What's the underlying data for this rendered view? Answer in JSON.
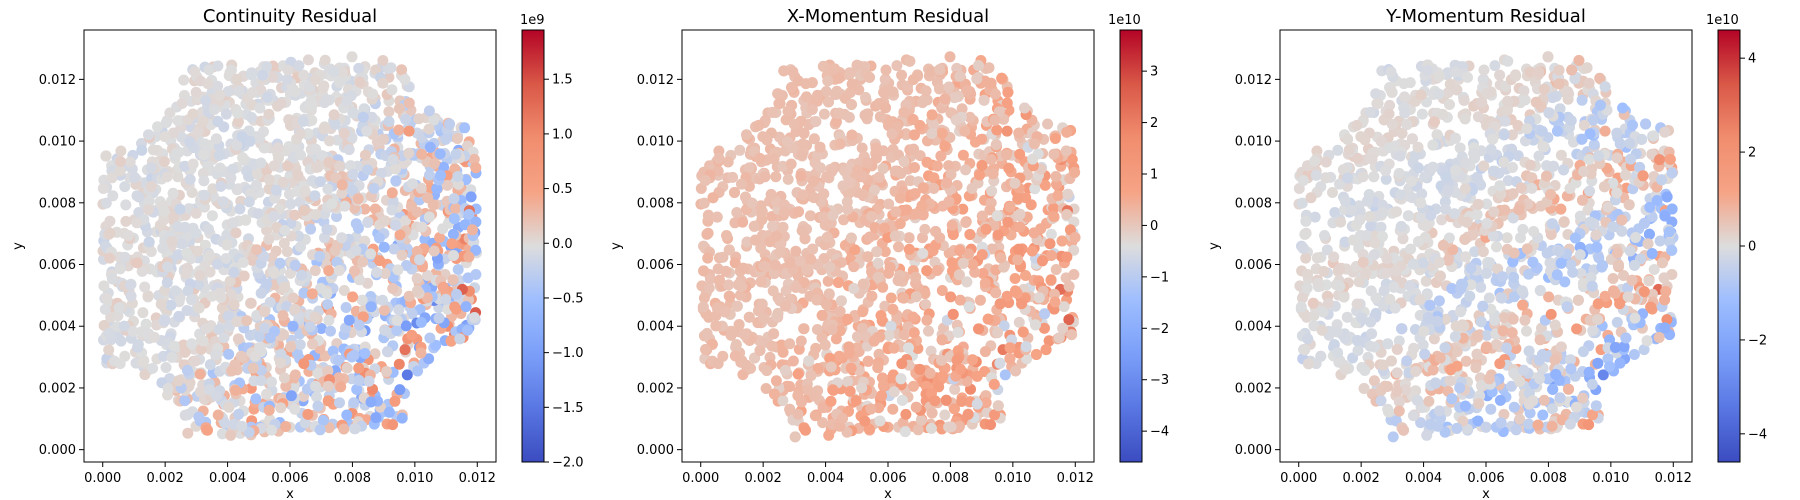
{
  "figure": {
    "background": "#ffffff"
  },
  "chart_data": [
    {
      "type": "scatter",
      "title": "Continuity Residual",
      "xlabel": "x",
      "ylabel": "y",
      "xlim": [
        -0.0006,
        0.0126
      ],
      "ylim": [
        -0.0004,
        0.0136
      ],
      "xticks": [
        0.0,
        0.002,
        0.004,
        0.006,
        0.008,
        0.01,
        0.012
      ],
      "xtick_labels": [
        "0.000",
        "0.002",
        "0.004",
        "0.006",
        "0.008",
        "0.010",
        "0.012"
      ],
      "yticks": [
        0.0,
        0.002,
        0.004,
        0.006,
        0.008,
        0.01,
        0.012
      ],
      "ytick_labels": [
        "0.000",
        "0.002",
        "0.004",
        "0.006",
        "0.008",
        "0.010",
        "0.012"
      ],
      "colorbar": {
        "colormap": "coolwarm",
        "min": -2.0,
        "max": 1.95,
        "ticks": [
          -2.0,
          -1.5,
          -1.0,
          -0.5,
          0.0,
          0.5,
          1.0,
          1.5
        ],
        "tick_labels": [
          "−2.0",
          "−1.5",
          "−1.0",
          "−0.5",
          "0.0",
          "0.5",
          "1.0",
          "1.5"
        ],
        "exponent": "1e9"
      },
      "pattern": "continuity"
    },
    {
      "type": "scatter",
      "title": "X-Momentum Residual",
      "xlabel": "x",
      "ylabel": "y",
      "xlim": [
        -0.0006,
        0.0126
      ],
      "ylim": [
        -0.0004,
        0.0136
      ],
      "xticks": [
        0.0,
        0.002,
        0.004,
        0.006,
        0.008,
        0.01,
        0.012
      ],
      "xtick_labels": [
        "0.000",
        "0.002",
        "0.004",
        "0.006",
        "0.008",
        "0.010",
        "0.012"
      ],
      "yticks": [
        0.0,
        0.002,
        0.004,
        0.006,
        0.008,
        0.01,
        0.012
      ],
      "ytick_labels": [
        "0.000",
        "0.002",
        "0.004",
        "0.006",
        "0.008",
        "0.010",
        "0.012"
      ],
      "colorbar": {
        "colormap": "coolwarm",
        "min": -4.6,
        "max": 3.8,
        "ticks": [
          -4,
          -3,
          -2,
          -1,
          0,
          1,
          2,
          3
        ],
        "tick_labels": [
          "−4",
          "−3",
          "−2",
          "−1",
          "0",
          "1",
          "2",
          "3"
        ],
        "exponent": "1e10"
      },
      "pattern": "xmomentum"
    },
    {
      "type": "scatter",
      "title": "Y-Momentum Residual",
      "xlabel": "x",
      "ylabel": "y",
      "xlim": [
        -0.0006,
        0.0126
      ],
      "ylim": [
        -0.0004,
        0.0136
      ],
      "xticks": [
        0.0,
        0.002,
        0.004,
        0.006,
        0.008,
        0.01,
        0.012
      ],
      "xtick_labels": [
        "0.000",
        "0.002",
        "0.004",
        "0.006",
        "0.008",
        "0.010",
        "0.012"
      ],
      "yticks": [
        0.0,
        0.002,
        0.004,
        0.006,
        0.008,
        0.01,
        0.012
      ],
      "ytick_labels": [
        "0.000",
        "0.002",
        "0.004",
        "0.006",
        "0.008",
        "0.010",
        "0.012"
      ],
      "colorbar": {
        "colormap": "coolwarm",
        "min": -4.6,
        "max": 4.6,
        "ticks": [
          -4,
          -2,
          0,
          2,
          4
        ],
        "tick_labels": [
          "−4",
          "−2",
          "0",
          "2",
          "4"
        ],
        "exponent": "1e10"
      },
      "pattern": "ymomentum"
    }
  ]
}
